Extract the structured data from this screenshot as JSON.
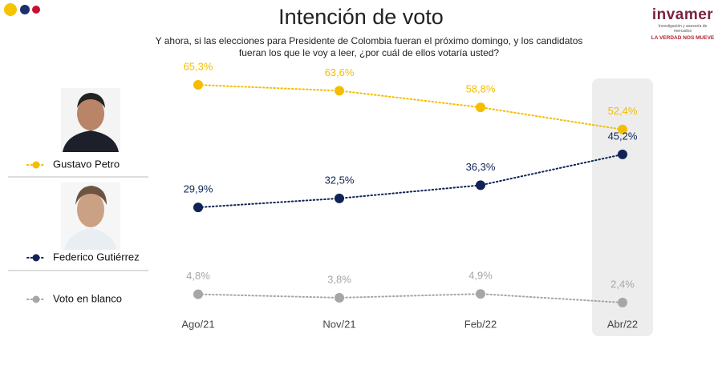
{
  "brand": {
    "name": "invamer",
    "tagline": "Investigación y asesoría de mercados",
    "slogan": "LA VERDAD NOS MUEVE"
  },
  "chart_data": {
    "type": "line",
    "title": "Intención de voto",
    "subtitle": "Y ahora, si las elecciones para Presidente de Colombia fueran el próximo domingo, y los candidatos fueran los que le voy a leer, ¿por cuál de ellos votaría usted?",
    "categories": [
      "Ago/21",
      "Nov/21",
      "Feb/22",
      "Abr/22"
    ],
    "series": [
      {
        "name": "Gustavo Petro",
        "color": "#f5bd00",
        "values": [
          65.3,
          63.6,
          58.8,
          52.4
        ],
        "value_labels": [
          "65,3%",
          "63,6%",
          "58,8%",
          "52,4%"
        ]
      },
      {
        "name": "Federico Gutiérrez",
        "color": "#0f2356",
        "values": [
          29.9,
          32.5,
          36.3,
          45.2
        ],
        "value_labels": [
          "29,9%",
          "32,5%",
          "36,3%",
          "45,2%"
        ]
      },
      {
        "name": "Voto en blanco",
        "color": "#a6a6a6",
        "values": [
          4.8,
          3.8,
          4.9,
          2.4
        ],
        "value_labels": [
          "4,8%",
          "3,8%",
          "4,9%",
          "2,4%"
        ]
      }
    ]
  }
}
